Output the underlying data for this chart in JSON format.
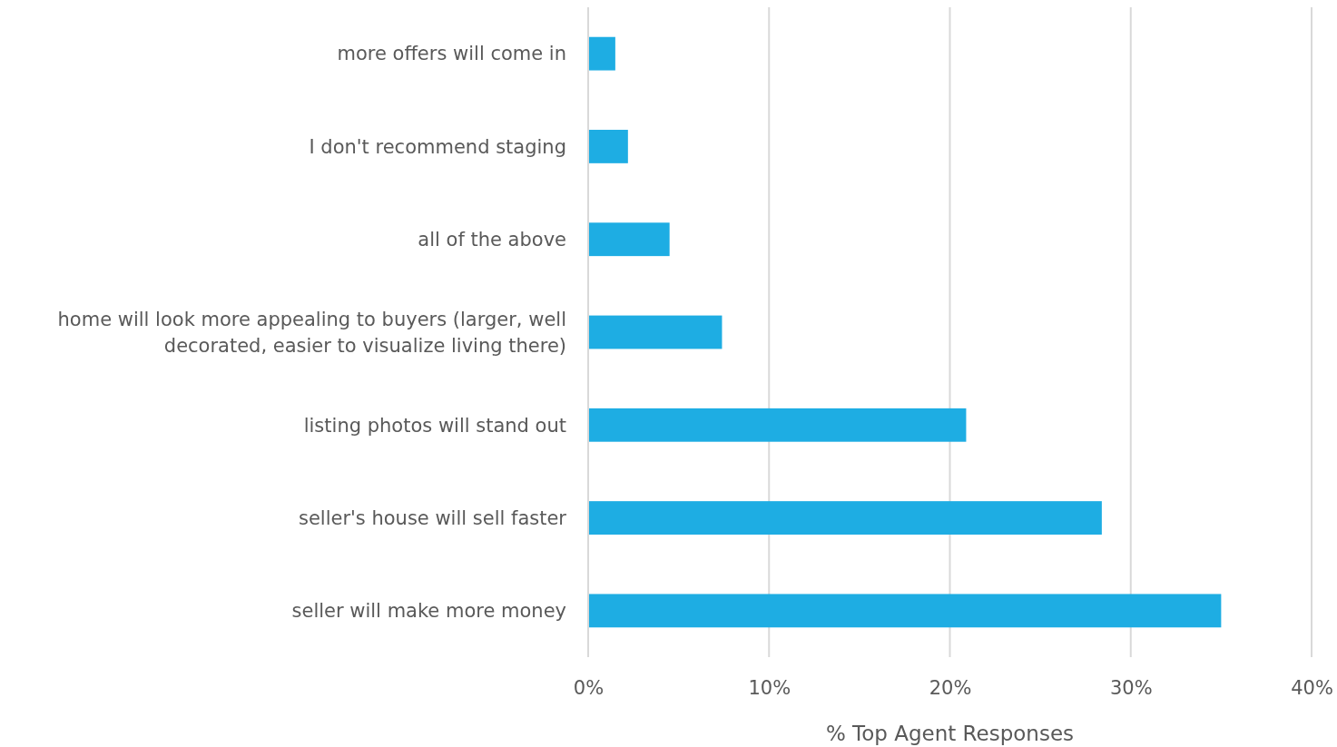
{
  "chart_data": {
    "type": "bar",
    "orientation": "horizontal",
    "xlabel": "% Top Agent Responses",
    "categories": [
      "more offers will come in",
      "I don't recommend staging",
      "all of the above",
      "home will look more appealing to buyers (larger, well decorated, easier to visualize living there)",
      "listing photos will stand out",
      "seller's house will sell faster",
      "seller will make more money"
    ],
    "values": [
      1.5,
      2.2,
      4.5,
      7.4,
      20.9,
      28.4,
      35.0
    ],
    "color": "#1eade3",
    "xlim": [
      0,
      40
    ],
    "xticks": [
      {
        "value": 0,
        "label": "0%"
      },
      {
        "value": 10,
        "label": "10%"
      },
      {
        "value": 20,
        "label": "20%"
      },
      {
        "value": 30,
        "label": "30%"
      },
      {
        "value": 40,
        "label": "40%"
      }
    ],
    "grid": "x"
  }
}
